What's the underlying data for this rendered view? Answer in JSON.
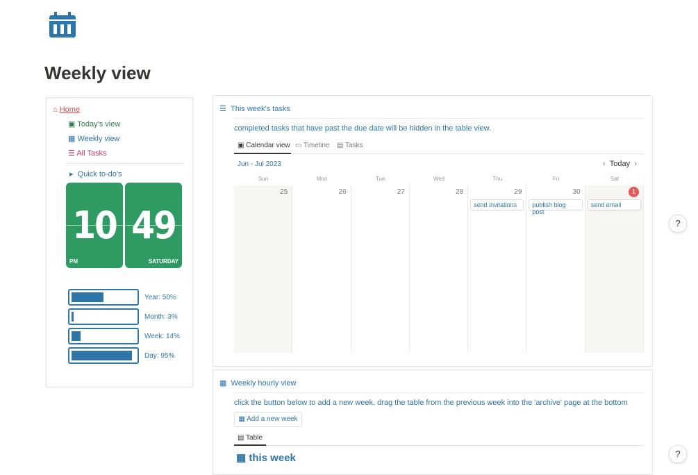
{
  "page": {
    "title": "Weekly view"
  },
  "sidebar": {
    "home": "Home",
    "links": [
      "Today's view",
      "Weekly view",
      "All Tasks"
    ],
    "toggle": "Quick to-do's",
    "clock": {
      "hour": "10",
      "minute": "49",
      "period": "PM",
      "day": "SATURDAY"
    },
    "progress": [
      {
        "label": "Year: 50%",
        "value": 50
      },
      {
        "label": "Month: 3%",
        "value": 3
      },
      {
        "label": "Week: 14%",
        "value": 14
      },
      {
        "label": "Day: 95%",
        "value": 95
      }
    ]
  },
  "tasks": {
    "title": "This week's tasks",
    "note": "completed tasks that have past the due date will be hidden in the table view.",
    "tabs": [
      "Calendar view",
      "Timeline",
      "Tasks"
    ],
    "month": "Jun - Jul 2023",
    "today": "Today",
    "weekdays": [
      "Sun",
      "Mon",
      "Tue",
      "Wed",
      "Thu",
      "Fri",
      "Sat"
    ],
    "days": [
      {
        "date": 25
      },
      {
        "date": 26
      },
      {
        "date": 27
      },
      {
        "date": 28
      },
      {
        "date": 29,
        "events": [
          "send invitations"
        ]
      },
      {
        "date": 30,
        "events": [
          "publish blog post"
        ]
      },
      {
        "date": 1,
        "events": [
          "send email"
        ]
      }
    ]
  },
  "hourly": {
    "title": "Weekly hourly view",
    "note": "click the button below to add a new week. drag the table from the previous week into the 'archive' page at the bottom",
    "button": "Add a new week",
    "tab": "Table",
    "heading": "this week"
  },
  "help": [
    "?",
    "?"
  ]
}
